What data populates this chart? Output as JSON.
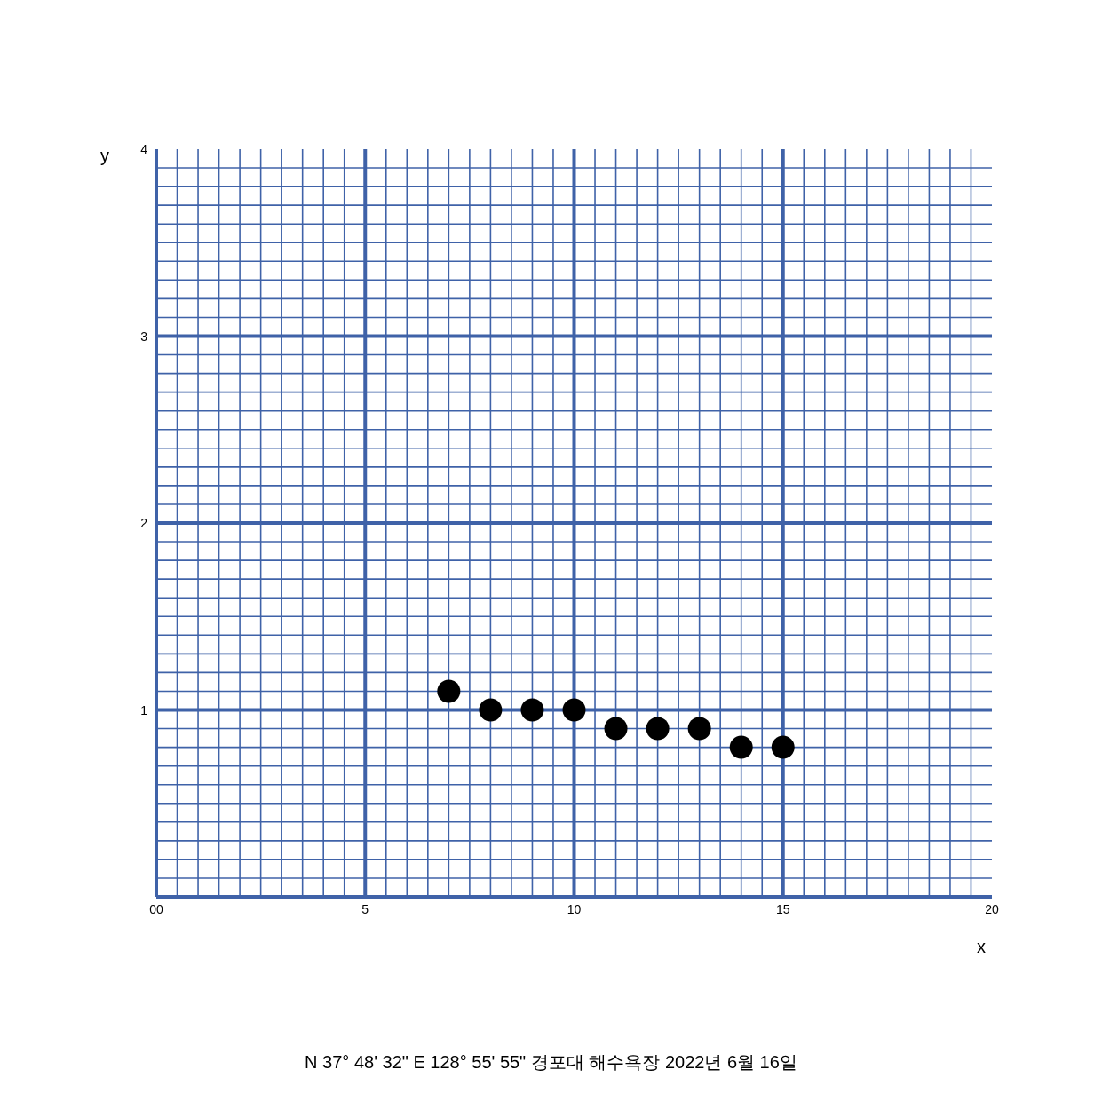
{
  "chart_data": {
    "type": "scatter",
    "xlabel": "x",
    "ylabel": "y",
    "x": [
      7,
      8,
      9,
      10,
      11,
      12,
      13,
      14,
      15
    ],
    "series": [
      {
        "color": "#000000",
        "values": [
          1.1,
          1.0,
          1.0,
          1.0,
          0.9,
          0.9,
          0.9,
          0.8,
          0.8
        ]
      }
    ],
    "marker": "circle",
    "xlim": [
      0,
      20
    ],
    "ylim": [
      0,
      4
    ],
    "xticks": [
      {
        "value": 0,
        "label": "00"
      },
      {
        "value": 0.5,
        "label": null
      },
      {
        "value": 1,
        "label": null
      },
      {
        "value": 1.5,
        "label": null
      },
      {
        "value": 2,
        "label": null
      },
      {
        "value": 2.5,
        "label": null
      },
      {
        "value": 3,
        "label": null
      },
      {
        "value": 3.5,
        "label": null
      },
      {
        "value": 4,
        "label": null
      },
      {
        "value": 4.5,
        "label": null
      },
      5,
      {
        "value": 5.5,
        "label": null
      },
      {
        "value": 6,
        "label": null
      },
      {
        "value": 6.5,
        "label": null
      },
      {
        "value": 7,
        "label": null
      },
      {
        "value": 7.5,
        "label": null
      },
      {
        "value": 8,
        "label": null
      },
      {
        "value": 8.5,
        "label": null
      },
      {
        "value": 9,
        "label": null
      },
      {
        "value": 9.5,
        "label": null
      },
      10,
      {
        "value": 10.5,
        "label": null
      },
      {
        "value": 11,
        "label": null
      },
      {
        "value": 11.5,
        "label": null
      },
      {
        "value": 12,
        "label": null
      },
      {
        "value": 12.5,
        "label": null
      },
      {
        "value": 13,
        "label": null
      },
      {
        "value": 13.5,
        "label": null
      },
      {
        "value": 14,
        "label": null
      },
      {
        "value": 14.5,
        "label": null
      },
      15,
      {
        "value": 15.5,
        "label": null
      },
      {
        "value": 16,
        "label": null
      },
      {
        "value": 16.5,
        "label": null
      },
      {
        "value": 17,
        "label": null
      },
      {
        "value": 17.5,
        "label": null
      },
      {
        "value": 18,
        "label": null
      },
      {
        "value": 18.5,
        "label": null
      },
      {
        "value": 19,
        "label": null
      },
      {
        "value": 19.5,
        "label": null
      },
      20
    ],
    "yticks": [
      {
        "value": 0.1,
        "label": null
      },
      {
        "value": 0.2,
        "label": null
      },
      {
        "value": 0.3,
        "label": null
      },
      {
        "value": 0.4,
        "label": null
      },
      {
        "value": 0.5,
        "label": null
      },
      {
        "value": 0.6,
        "label": null
      },
      {
        "value": 0.7,
        "label": null
      },
      {
        "value": 0.8,
        "label": null
      },
      {
        "value": 0.9,
        "label": null
      },
      1,
      {
        "value": 1.1,
        "label": null
      },
      {
        "value": 1.2,
        "label": null
      },
      {
        "value": 1.3,
        "label": null
      },
      {
        "value": 1.4,
        "label": null
      },
      {
        "value": 1.5,
        "label": null
      },
      {
        "value": 1.6,
        "label": null
      },
      {
        "value": 1.7,
        "label": null
      },
      {
        "value": 1.8,
        "label": null
      },
      {
        "value": 1.9,
        "label": null
      },
      2,
      {
        "value": 2.1,
        "label": null
      },
      {
        "value": 2.2,
        "label": null
      },
      {
        "value": 2.3,
        "label": null
      },
      {
        "value": 2.4,
        "label": null
      },
      {
        "value": 2.5,
        "label": null
      },
      {
        "value": 2.6,
        "label": null
      },
      {
        "value": 2.7,
        "label": null
      },
      {
        "value": 2.8,
        "label": null
      },
      {
        "value": 2.9,
        "label": null
      },
      3,
      {
        "value": 3.1,
        "label": null
      },
      {
        "value": 3.2,
        "label": null
      },
      {
        "value": 3.3,
        "label": null
      },
      {
        "value": 3.4,
        "label": null
      },
      {
        "value": 3.5,
        "label": null
      },
      {
        "value": 3.6,
        "label": null
      },
      {
        "value": 3.7,
        "label": null
      },
      {
        "value": 3.8,
        "label": null
      },
      {
        "value": 3.9,
        "label": null
      },
      4
    ],
    "grid": true,
    "annotations": [
      "N 37° 48' 32\" E 128° 55' 55\" 경포대 해수욕장 2022년 6월 16일"
    ]
  }
}
